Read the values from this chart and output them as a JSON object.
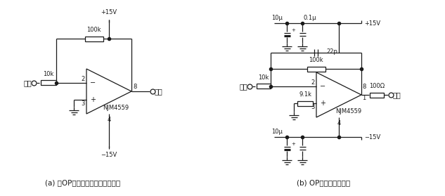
{
  "fig_width": 6.33,
  "fig_height": 2.79,
  "dpi": 100,
  "bg_color": "#ffffff",
  "line_color": "#1a1a1a",
  "line_width": 0.9,
  "caption_a": "(a) 将OP放大器看作黑盒子的电路",
  "caption_b": "(b) OP放大器内部电路",
  "caption_fontsize": 7.5,
  "label_fontsize": 7.0,
  "small_fontsize": 6.0,
  "circuit_a": {
    "vcc": "+15V",
    "vee": "−15V",
    "rf": "100k",
    "rin": "10k",
    "ic": "NJM4559",
    "input_label": "输入",
    "output_label": "输出"
  },
  "circuit_b": {
    "vcc": "+15V",
    "vee": "−15V",
    "rf": "100k",
    "rin": "10k",
    "r2": "9.1k",
    "rout": "100Ω",
    "cf": "22p",
    "c1": "10μ",
    "c2": "0.1μ",
    "c3": "10μ",
    "ic": "NJM4559",
    "input_label": "输入",
    "output_label": "输出"
  }
}
